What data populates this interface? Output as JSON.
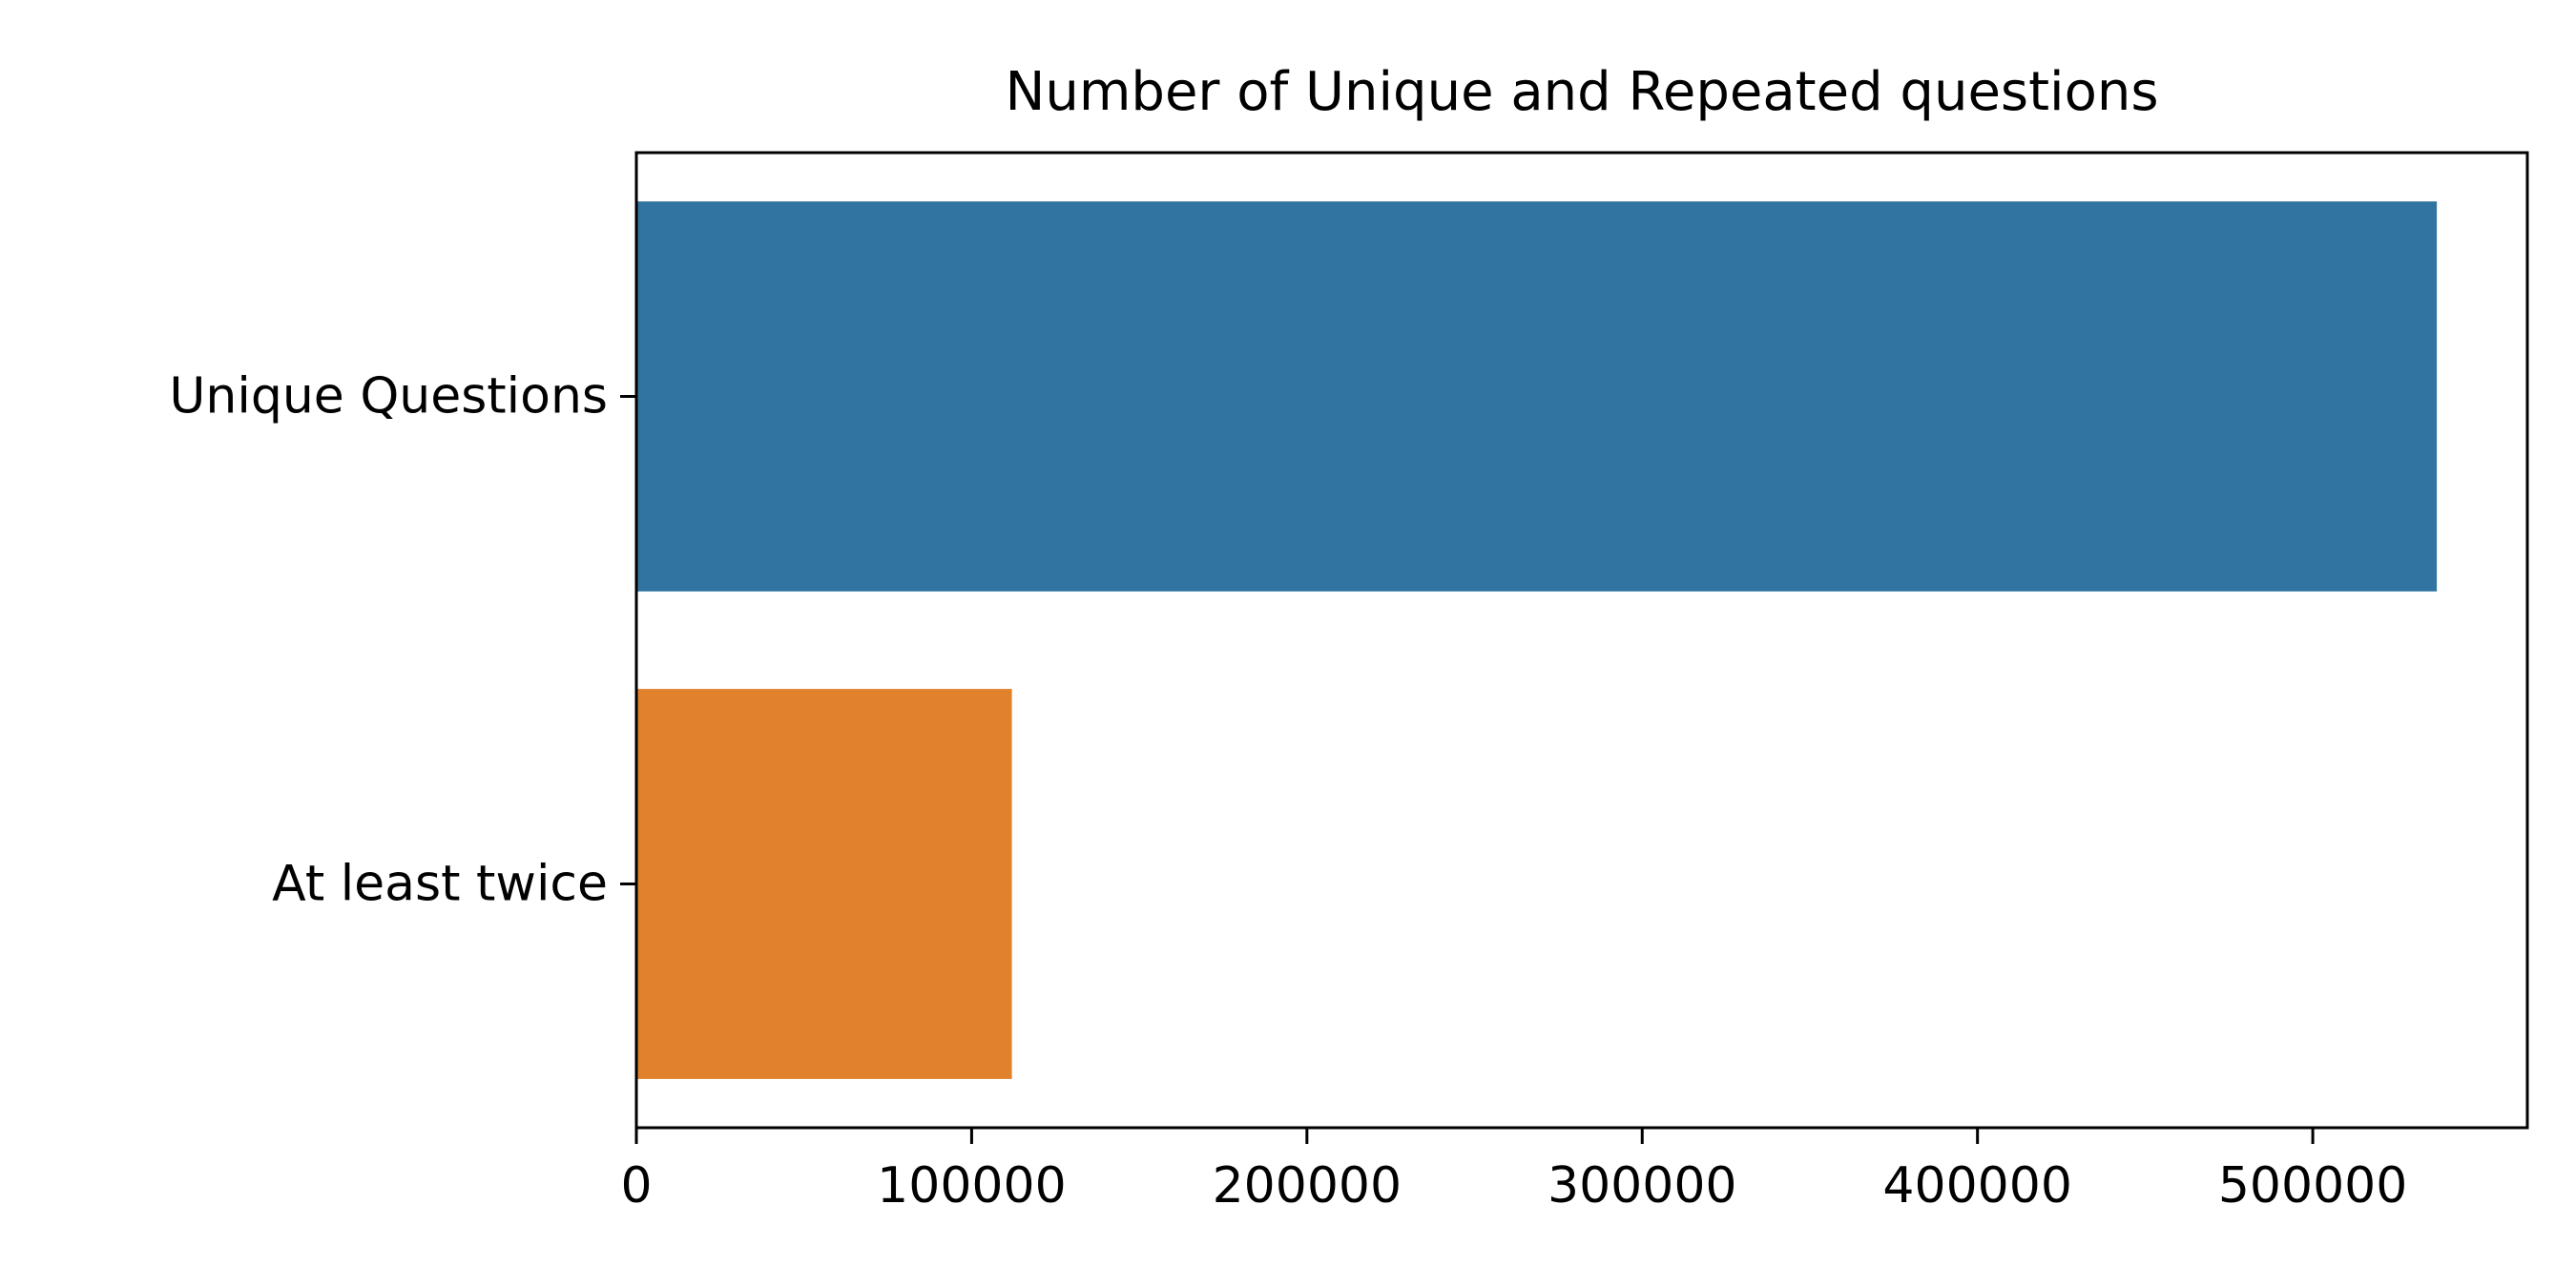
{
  "chart_data": {
    "type": "bar",
    "orientation": "horizontal",
    "title": "Number of Unique and Repeated questions",
    "xlabel": "",
    "ylabel": "",
    "categories": [
      "Unique Questions",
      "At least twice"
    ],
    "values": [
      537000,
      112000
    ],
    "colors": [
      "#3274a1",
      "#e1812c"
    ],
    "xlim": [
      0,
      564000
    ],
    "xticks": [
      "0",
      "100000",
      "200000",
      "300000",
      "400000",
      "500000"
    ],
    "xtick_values": [
      0,
      100000,
      200000,
      300000,
      400000,
      500000
    ],
    "grid": false
  }
}
